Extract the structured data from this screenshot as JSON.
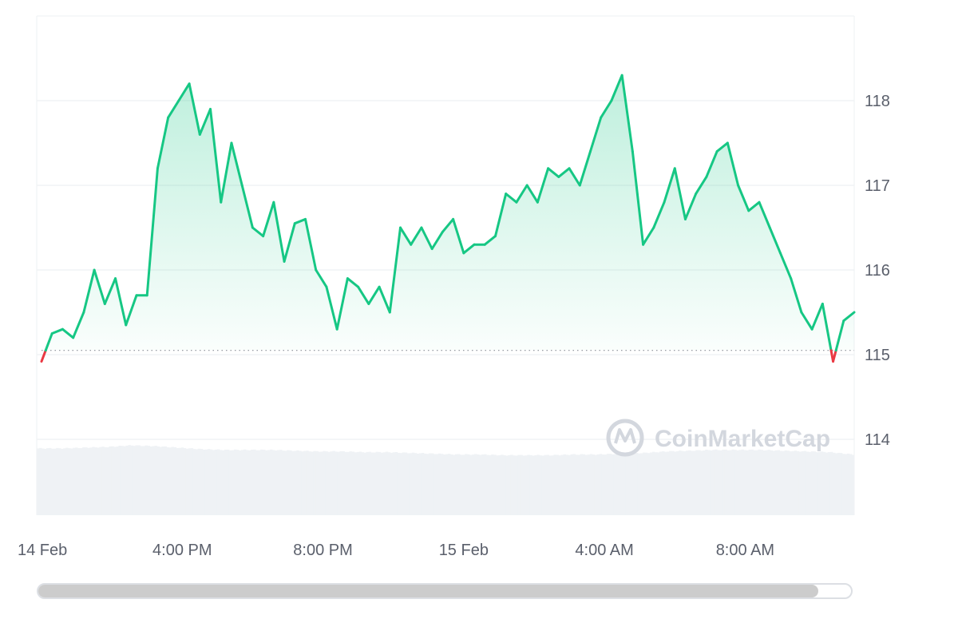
{
  "chart_data": {
    "type": "line",
    "title": "",
    "xlabel": "",
    "ylabel": "",
    "ylim": [
      113.1,
      119.0
    ],
    "yticks": [
      114,
      115,
      116,
      117,
      118
    ],
    "x_tick_labels": [
      "14 Feb",
      "4:00 PM",
      "8:00 PM",
      "15 Feb",
      "4:00 AM",
      "8:00 AM"
    ],
    "x_tick_hours": [
      0,
      4,
      8,
      12,
      16,
      20
    ],
    "baseline": 115.05,
    "x_hours": [
      0.0,
      0.3,
      0.6,
      0.9,
      1.2,
      1.5,
      1.8,
      2.1,
      2.4,
      2.7,
      3.0,
      3.3,
      3.6,
      3.9,
      4.2,
      4.5,
      4.8,
      5.1,
      5.4,
      5.7,
      6.0,
      6.3,
      6.6,
      6.9,
      7.2,
      7.5,
      7.8,
      8.1,
      8.4,
      8.7,
      9.0,
      9.3,
      9.6,
      9.9,
      10.2,
      10.5,
      10.8,
      11.1,
      11.4,
      11.7,
      12.0,
      12.3,
      12.6,
      12.9,
      13.2,
      13.5,
      13.8,
      14.1,
      14.4,
      14.7,
      15.0,
      15.3,
      15.6,
      15.9,
      16.2,
      16.5,
      16.8,
      17.1,
      17.4,
      17.7,
      18.0,
      18.3,
      18.6,
      18.9,
      19.2,
      19.5,
      19.8,
      20.1,
      20.4,
      20.7,
      21.0,
      21.3,
      21.6,
      21.9,
      22.2,
      22.5,
      22.8,
      23.1
    ],
    "series": [
      {
        "values": [
          114.92,
          115.25,
          115.3,
          115.2,
          115.5,
          116.0,
          115.6,
          115.9,
          115.35,
          115.7,
          115.7,
          117.2,
          117.8,
          118.0,
          118.2,
          117.6,
          117.9,
          116.8,
          117.5,
          117.0,
          116.5,
          116.4,
          116.8,
          116.1,
          116.55,
          116.6,
          116.0,
          115.8,
          115.3,
          115.9,
          115.8,
          115.6,
          115.8,
          115.5,
          116.5,
          116.3,
          116.5,
          116.25,
          116.45,
          116.6,
          116.2,
          116.3,
          116.3,
          116.4,
          116.9,
          116.8,
          117.0,
          116.8,
          117.2,
          117.1,
          117.2,
          117.0,
          117.4,
          117.8,
          118.0,
          118.3,
          117.4,
          116.3,
          116.5,
          116.8,
          117.2,
          116.6,
          116.9,
          117.1,
          117.4,
          117.5,
          117.0,
          116.7,
          116.8,
          116.5,
          116.2,
          115.9,
          115.5,
          115.3,
          115.6,
          114.92,
          115.4,
          115.5
        ]
      }
    ],
    "colors": {
      "line": "#16c784",
      "below_baseline": "#ea3943",
      "grid": "#eef0f3",
      "volume": "#eff2f5",
      "baseline": "#8a8f98"
    }
  },
  "volume_levels": [
    0.88,
    0.88,
    0.89,
    0.9,
    0.92,
    0.91,
    0.89,
    0.87,
    0.86,
    0.86,
    0.86,
    0.85,
    0.84,
    0.84,
    0.83,
    0.83,
    0.82,
    0.81,
    0.8,
    0.8,
    0.79,
    0.79,
    0.79,
    0.8,
    0.8,
    0.81,
    0.82,
    0.84,
    0.85,
    0.86,
    0.86,
    0.86,
    0.85,
    0.84,
    0.83,
    0.8
  ],
  "watermark": "CoinMarketCap",
  "scrollbar": {
    "thumb_fraction": 0.96
  }
}
